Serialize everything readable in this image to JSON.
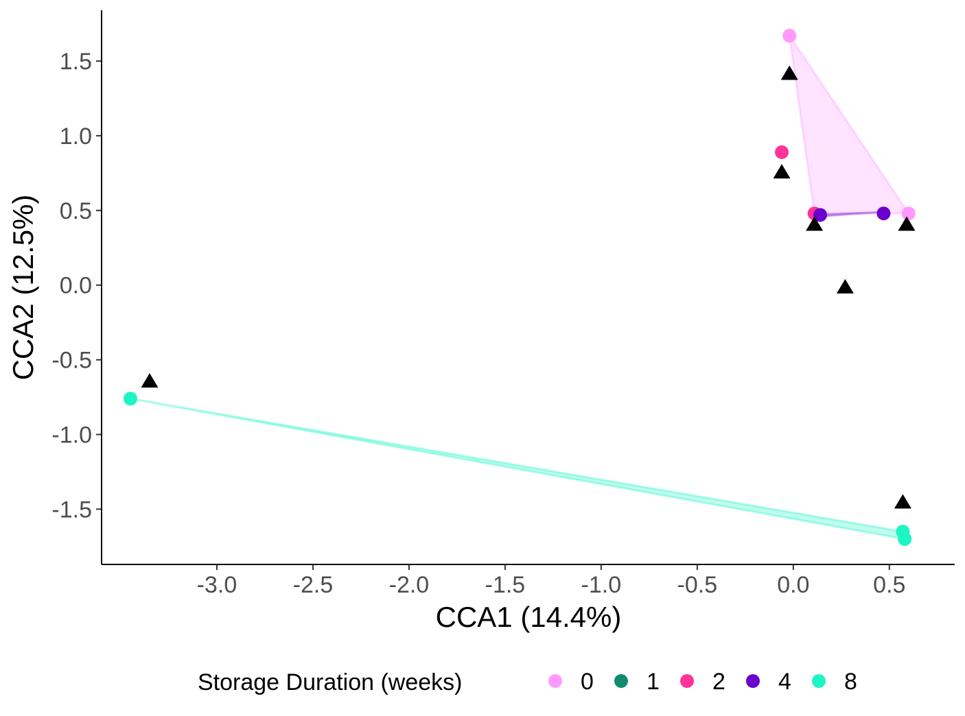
{
  "chart_data": {
    "type": "scatter",
    "xlabel": "CCA1 (14.4%)",
    "ylabel": "CCA2 (12.5%)",
    "xlim": [
      -3.6,
      0.84
    ],
    "ylim": [
      -1.87,
      1.84
    ],
    "x_ticks": [
      -3.0,
      -2.5,
      -2.0,
      -1.5,
      -1.0,
      -0.5,
      0.0,
      0.5
    ],
    "x_tick_labels": [
      "-3.0",
      "-2.5",
      "-2.0",
      "-1.5",
      "-1.0",
      "-0.5",
      "0.0",
      "0.5"
    ],
    "y_ticks": [
      1.5,
      1.0,
      0.5,
      0.0,
      -0.5,
      -1.0,
      -1.5
    ],
    "y_tick_labels": [
      "1.5",
      "1.0",
      "0.5",
      "0.0",
      "-0.5",
      "-1.0",
      "-1.5"
    ],
    "grid": false,
    "legend": {
      "title": "Storage Duration (weeks)",
      "position": "bottom"
    },
    "series": [
      {
        "name": "0",
        "color": "#FF99FF",
        "points": [
          [
            -0.02,
            1.67
          ],
          [
            0.6,
            0.48
          ]
        ],
        "hull": [
          [
            -0.02,
            1.67
          ],
          [
            0.6,
            0.48
          ],
          [
            0.11,
            0.48
          ]
        ]
      },
      {
        "name": "1",
        "color": "#118A6E",
        "points": []
      },
      {
        "name": "2",
        "color": "#FF3399",
        "points": [
          [
            -0.06,
            0.89
          ],
          [
            0.11,
            0.48
          ]
        ],
        "hull": []
      },
      {
        "name": "4",
        "color": "#6B00CC",
        "points": [
          [
            0.14,
            0.47
          ],
          [
            0.47,
            0.48
          ]
        ],
        "hull": [
          [
            0.11,
            0.47
          ],
          [
            0.47,
            0.49
          ],
          [
            0.14,
            0.46
          ]
        ]
      },
      {
        "name": "8",
        "color": "#1EF5C4",
        "points": [
          [
            -3.45,
            -0.76
          ],
          [
            0.57,
            -1.65
          ],
          [
            0.58,
            -1.7
          ]
        ],
        "hull": [
          [
            -3.45,
            -0.76
          ],
          [
            0.57,
            -1.65
          ],
          [
            0.58,
            -1.7
          ]
        ]
      }
    ],
    "triangles": [
      [
        -0.02,
        1.42
      ],
      [
        -0.06,
        0.76
      ],
      [
        0.11,
        0.41
      ],
      [
        0.59,
        0.41
      ],
      [
        0.27,
        -0.01
      ],
      [
        -3.35,
        -0.64
      ],
      [
        0.57,
        -1.45
      ]
    ]
  }
}
